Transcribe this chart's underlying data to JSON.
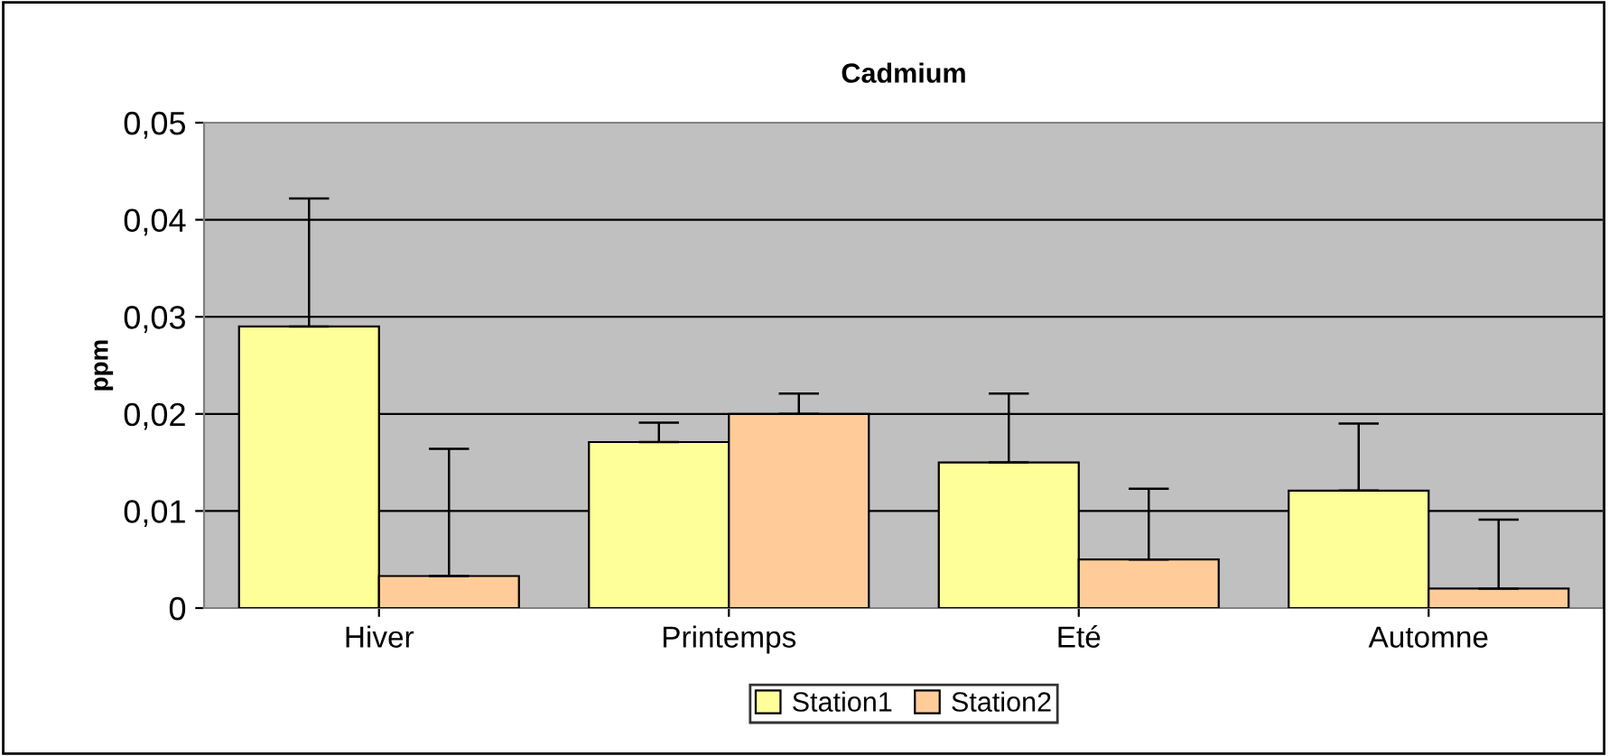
{
  "chart_data": {
    "type": "bar",
    "title": "Cadmium",
    "ylabel": "ppm",
    "categories": [
      "Hiver",
      "Printemps",
      "Eté",
      "Automne"
    ],
    "series": [
      {
        "name": "Station1",
        "color": "#ffff99",
        "values": [
          0.029,
          0.0171,
          0.015,
          0.0121
        ],
        "errors": [
          [
            0.029,
            0.0422
          ],
          [
            0.0171,
            0.0191
          ],
          [
            0.015,
            0.0221
          ],
          [
            0.0121,
            0.019
          ]
        ]
      },
      {
        "name": "Station2",
        "color": "#ffcc99",
        "values": [
          0.0033,
          0.02,
          0.005,
          0.002
        ],
        "errors": [
          [
            0.0033,
            0.0164
          ],
          [
            0.02,
            0.0221
          ],
          [
            0.005,
            0.0123
          ],
          [
            0.002,
            0.0091
          ]
        ]
      }
    ],
    "ylim": [
      0,
      0.05
    ],
    "yticks": [
      {
        "value": 0,
        "label": "0"
      },
      {
        "value": 0.01,
        "label": "0,01"
      },
      {
        "value": 0.02,
        "label": "0,02"
      },
      {
        "value": 0.03,
        "label": "0,03"
      },
      {
        "value": 0.04,
        "label": "0,04"
      },
      {
        "value": 0.05,
        "label": "0,05"
      }
    ],
    "grid": "y",
    "legend": "bottom"
  }
}
